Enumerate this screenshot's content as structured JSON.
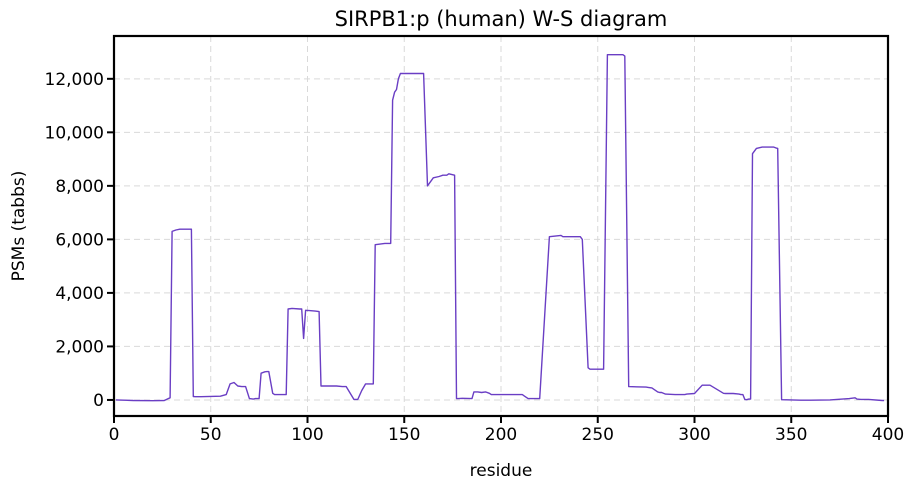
{
  "chart_data": {
    "type": "line",
    "title": "SIRPB1:p (human) W-S diagram",
    "xlabel": "residue",
    "ylabel": "PSMs (tabbs)",
    "xlim": [
      0,
      400
    ],
    "ylim": [
      -600,
      13600
    ],
    "xticks": [
      0,
      50,
      100,
      150,
      200,
      250,
      300,
      350,
      400
    ],
    "xtick_labels": [
      "0",
      "50",
      "100",
      "150",
      "200",
      "250",
      "300",
      "350",
      "400"
    ],
    "yticks": [
      0,
      2000,
      4000,
      6000,
      8000,
      10000,
      12000
    ],
    "ytick_labels": [
      "0",
      "2,000",
      "4,000",
      "6,000",
      "8,000",
      "10,000",
      "12,000"
    ],
    "grid": true,
    "line_color": "#6a3ec4",
    "series": [
      {
        "x": [
          1,
          10,
          20,
          26,
          28,
          29,
          30,
          32,
          34,
          40,
          41,
          42,
          45,
          55,
          58,
          60,
          62,
          64,
          66,
          68,
          70,
          72,
          73,
          75,
          76,
          78,
          79,
          80,
          82,
          83,
          85,
          89,
          90,
          92,
          96,
          97,
          98,
          99,
          101,
          104,
          106,
          107,
          110,
          115,
          118,
          120,
          124,
          126,
          128,
          130,
          133,
          134,
          135,
          140,
          141,
          142,
          143,
          144,
          145,
          146,
          147,
          148,
          150,
          152,
          153,
          155,
          157,
          158,
          160,
          162,
          165,
          168,
          170,
          172,
          173,
          176,
          177,
          178,
          180,
          185,
          186,
          188,
          190,
          192,
          194,
          195,
          200,
          210,
          211,
          212,
          214,
          215,
          220,
          225,
          231,
          232,
          234,
          235,
          240,
          241,
          242,
          245,
          246,
          250,
          252,
          253,
          255,
          262,
          263,
          264,
          266,
          275,
          276,
          278,
          281,
          282,
          283,
          285,
          290,
          295,
          296,
          300,
          304,
          305,
          308,
          315,
          316,
          320,
          323,
          324,
          325,
          326,
          327,
          328,
          329,
          330,
          332,
          335,
          341,
          342,
          343,
          345,
          350,
          355,
          360,
          370,
          380,
          383,
          384,
          386,
          390,
          397,
          398
        ],
        "y": [
          0,
          -20,
          -30,
          -20,
          50,
          80,
          6300,
          6350,
          6380,
          6380,
          130,
          120,
          120,
          140,
          200,
          600,
          650,
          520,
          500,
          500,
          50,
          30,
          50,
          50,
          1000,
          1050,
          1060,
          1060,
          250,
          200,
          200,
          200,
          3400,
          3420,
          3400,
          3400,
          2300,
          3350,
          3340,
          3320,
          3300,
          520,
          520,
          520,
          500,
          500,
          20,
          20,
          350,
          600,
          600,
          600,
          5800,
          5850,
          5850,
          5850,
          5850,
          11200,
          11500,
          11600,
          12000,
          12200,
          12200,
          12200,
          12200,
          12200,
          12200,
          12200,
          12200,
          8000,
          8300,
          8350,
          8400,
          8400,
          8450,
          8400,
          50,
          50,
          60,
          50,
          300,
          300,
          280,
          300,
          250,
          200,
          200,
          200,
          200,
          150,
          50,
          50,
          50,
          6100,
          6150,
          6100,
          6100,
          6100,
          6100,
          6100,
          6000,
          1200,
          1150,
          1150,
          1150,
          1150,
          12900,
          12900,
          12900,
          12850,
          500,
          480,
          470,
          450,
          300,
          280,
          280,
          220,
          200,
          200,
          220,
          240,
          550,
          550,
          550,
          250,
          240,
          240,
          220,
          200,
          200,
          20,
          10,
          30,
          30,
          9200,
          9400,
          9450,
          9450,
          9420,
          9400,
          10,
          0,
          -10,
          -10,
          0,
          50,
          80,
          30,
          20,
          20,
          -20,
          -20
        ]
      }
    ]
  }
}
